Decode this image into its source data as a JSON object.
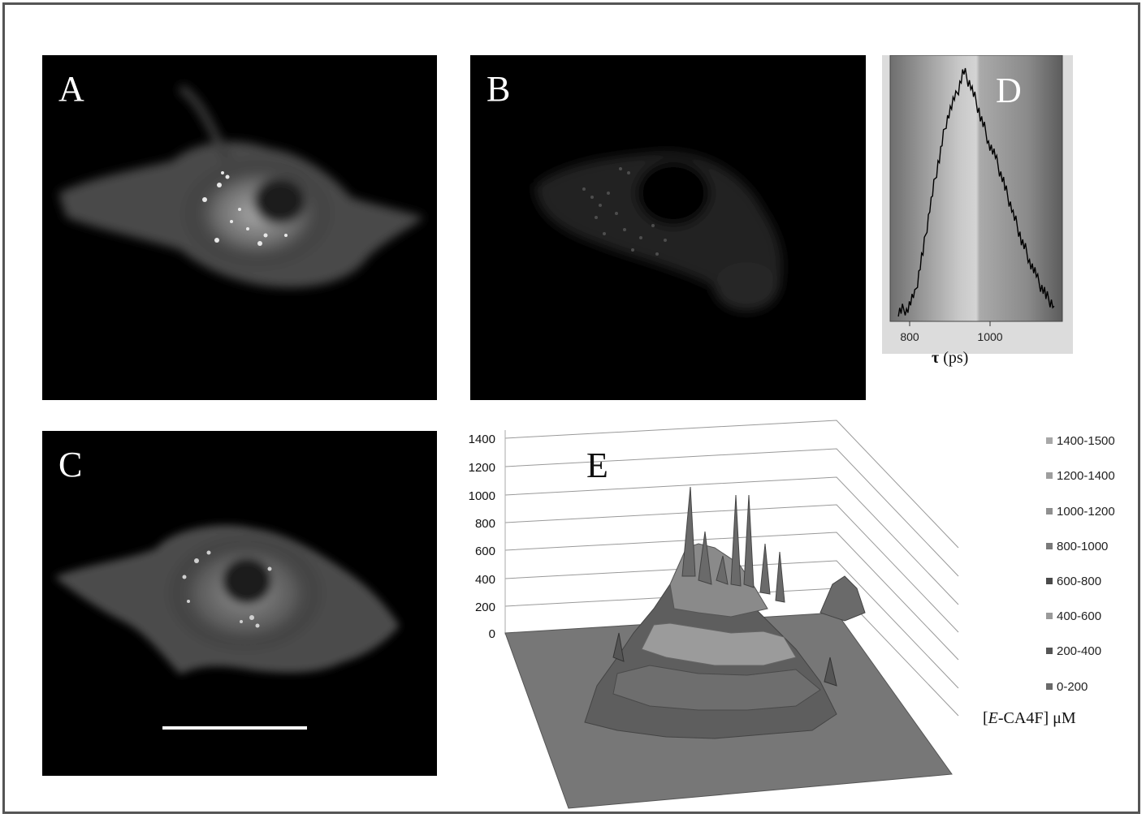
{
  "figure": {
    "panel_a": {
      "label": "A"
    },
    "panel_b": {
      "label": "B"
    },
    "panel_c": {
      "label": "C"
    },
    "panel_d": {
      "label": "D",
      "x_tick_labels": [
        "800",
        "1000"
      ],
      "xlabel_symbol": "τ",
      "xlabel_unit": "(ps)"
    },
    "panel_e": {
      "label": "E",
      "z_tick_labels": [
        "1400",
        "1200",
        "1000",
        "800",
        "600",
        "400",
        "200",
        "0"
      ],
      "legend": [
        "1400-1500",
        "1200-1400",
        "1000-1200",
        "800-1000",
        "600-800",
        "400-600",
        "200-400",
        "0-200"
      ],
      "unit_prefix": "[",
      "unit_italic": "E",
      "unit_suffix": "-CA4F] μM"
    }
  },
  "chart_data": [
    {
      "type": "line",
      "panel": "D",
      "x": [
        780,
        800,
        820,
        840,
        860,
        880,
        900,
        920,
        940,
        960,
        980,
        1000,
        1020,
        1040,
        1060,
        1080,
        1100,
        1120,
        1140,
        1160
      ],
      "y": [
        0.02,
        0.03,
        0.08,
        0.25,
        0.45,
        0.62,
        0.78,
        0.85,
        0.95,
        0.88,
        0.78,
        0.68,
        0.6,
        0.5,
        0.4,
        0.3,
        0.22,
        0.14,
        0.08,
        0.04
      ],
      "xlabel": "τ (ps)",
      "x_ticks": [
        800,
        1000
      ],
      "xlim": [
        760,
        1180
      ]
    },
    {
      "type": "area",
      "panel": "E",
      "z_ticks": [
        0,
        200,
        400,
        600,
        800,
        1000,
        1200,
        1400
      ],
      "zlim": [
        0,
        1500
      ],
      "legend_placement": "right",
      "series": [
        {
          "name": "1400-1500"
        },
        {
          "name": "1200-1400"
        },
        {
          "name": "1000-1200"
        },
        {
          "name": "800-1000"
        },
        {
          "name": "600-800"
        },
        {
          "name": "400-600"
        },
        {
          "name": "200-400"
        },
        {
          "name": "0-200"
        }
      ],
      "zlabel": "[E-CA4F] μM"
    }
  ]
}
